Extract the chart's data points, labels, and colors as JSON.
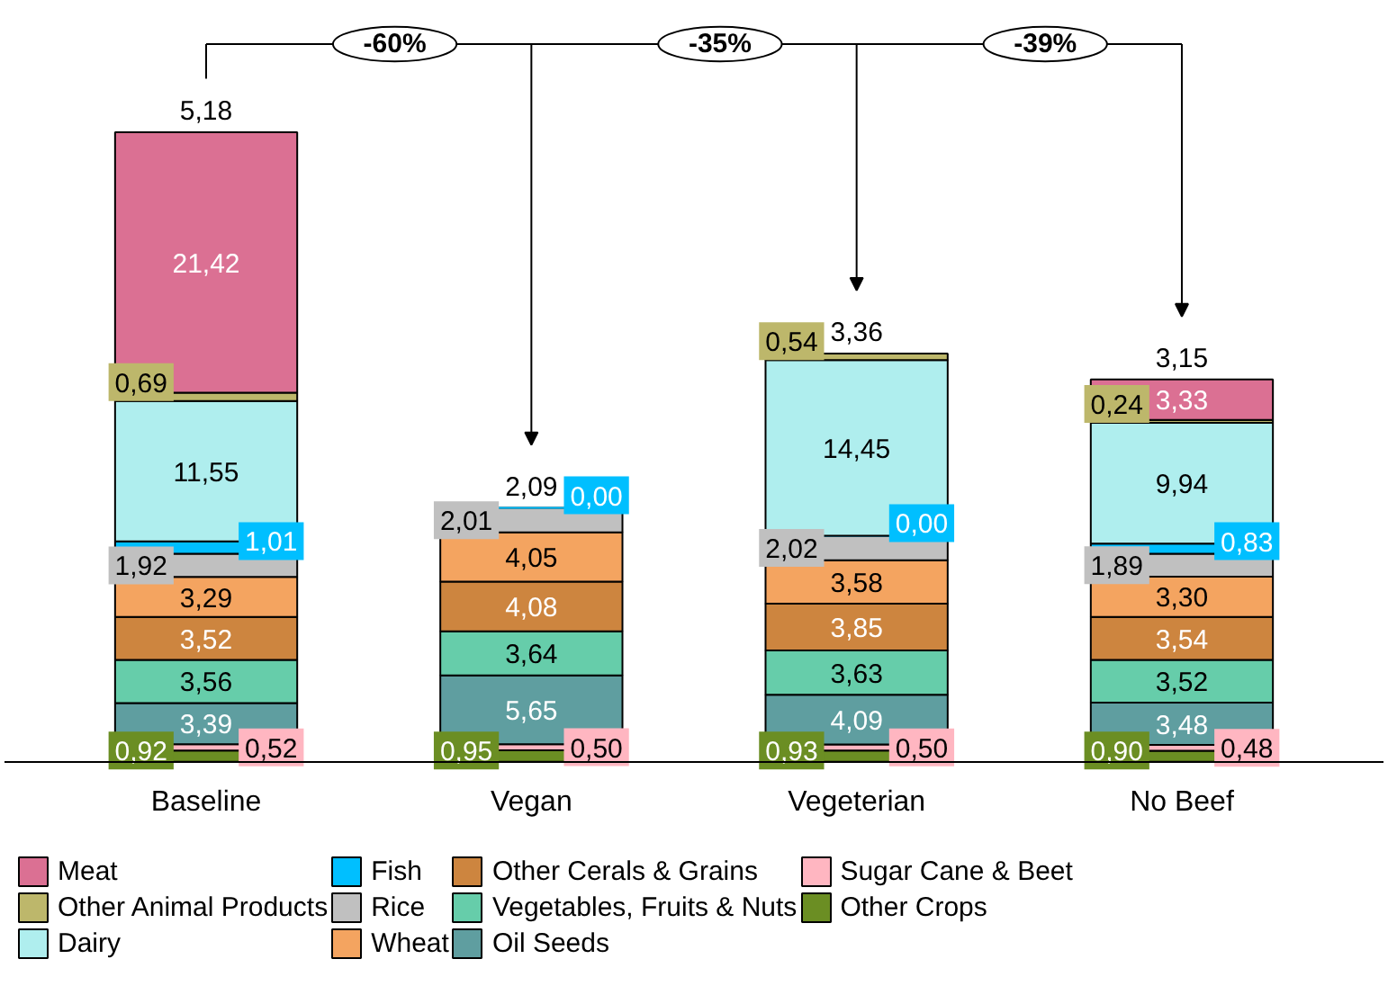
{
  "chart_data": {
    "type": "bar",
    "stacked": true,
    "legend": "bottom",
    "grid": false,
    "categories": [
      "Baseline",
      "Vegan",
      "Vegeterian",
      "No Beef"
    ],
    "series": [
      {
        "name": "Other Crops",
        "color": "#6b8e23",
        "values": [
          0.92,
          0.95,
          0.93,
          0.9
        ],
        "value_labels": [
          "0,92",
          "0,95",
          "0,93",
          "0,90"
        ]
      },
      {
        "name": "Sugar Cane & Beet",
        "color": "#ffb6c1",
        "values": [
          0.52,
          0.5,
          0.5,
          0.48
        ],
        "value_labels": [
          "0,52",
          "0,50",
          "0,50",
          "0,48"
        ]
      },
      {
        "name": "Oil Seeds",
        "color": "#5f9ea0",
        "values": [
          3.39,
          5.65,
          4.09,
          3.48
        ],
        "value_labels": [
          "3,39",
          "5,65",
          "4,09",
          "3,48"
        ]
      },
      {
        "name": "Vegetables, Fruits & Nuts",
        "color": "#66cdaa",
        "values": [
          3.56,
          3.64,
          3.63,
          3.52
        ],
        "value_labels": [
          "3,56",
          "3,64",
          "3,63",
          "3,52"
        ]
      },
      {
        "name": "Other Cerals & Grains",
        "color": "#cd853f",
        "values": [
          3.52,
          4.08,
          3.85,
          3.54
        ],
        "value_labels": [
          "3,52",
          "4,08",
          "3,85",
          "3,54"
        ]
      },
      {
        "name": "Wheat",
        "color": "#f4a460",
        "values": [
          3.29,
          4.05,
          3.58,
          3.3
        ],
        "value_labels": [
          "3,29",
          "4,05",
          "3,58",
          "3,30"
        ]
      },
      {
        "name": "Rice",
        "color": "#c0c0c0",
        "values": [
          1.92,
          2.01,
          2.02,
          1.89
        ],
        "value_labels": [
          "1,92",
          "2,01",
          "2,02",
          "1,89"
        ]
      },
      {
        "name": "Fish",
        "color": "#00bfff",
        "values": [
          1.01,
          0.0,
          0.0,
          0.83
        ],
        "value_labels": [
          "1,01",
          "0,00",
          "0,00",
          "0,83"
        ]
      },
      {
        "name": "Dairy",
        "color": "#afeeee",
        "values": [
          11.55,
          null,
          14.45,
          9.94
        ],
        "value_labels": [
          "11,55",
          null,
          "14,45",
          "9,94"
        ]
      },
      {
        "name": "Other Animal Products",
        "color": "#bdb76b",
        "values": [
          0.69,
          null,
          0.54,
          0.24
        ],
        "value_labels": [
          "0,69",
          null,
          "0,54",
          "0,24"
        ]
      },
      {
        "name": "Meat",
        "color": "#db7093",
        "values": [
          21.42,
          null,
          null,
          3.33
        ],
        "value_labels": [
          "21,42",
          null,
          null,
          "3,33"
        ]
      }
    ],
    "annotations": [
      {
        "text": "5,18",
        "x": "Baseline",
        "y": 51.79
      },
      {
        "text": "2,09",
        "x": "Vegan",
        "y": 20.88
      },
      {
        "text": "3,36",
        "x": "Vegeterian",
        "y": 33.59
      },
      {
        "text": "3,15",
        "x": "No Beef",
        "y": 31.45
      },
      "-60%",
      "-35%",
      "-39%"
    ]
  }
}
